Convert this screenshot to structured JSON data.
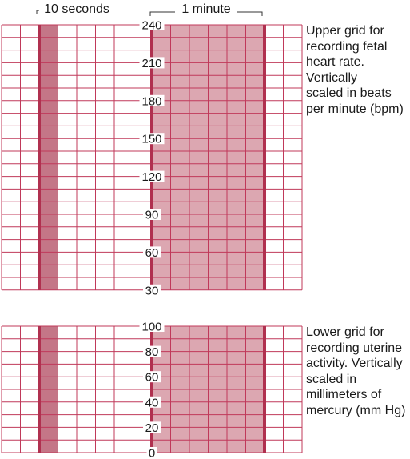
{
  "colors": {
    "grid_line": "#c0395a",
    "thick_line": "#b0304f",
    "shade_10s": "#c47687",
    "shade_1min": "#dca7b1",
    "text": "#1a1a1a",
    "bracket": "#333333"
  },
  "brackets": {
    "ten_seconds": "10 seconds",
    "one_minute": "1 minute"
  },
  "upper_grid": {
    "scale_labels": [
      "240",
      "210",
      "180",
      "150",
      "120",
      "90",
      "60",
      "30"
    ],
    "caption_lines": [
      "Upper grid for",
      "recording fetal",
      "heart rate.",
      "Vertically",
      "scaled in beats",
      "per minute (bpm)"
    ]
  },
  "lower_grid": {
    "scale_labels": [
      "100",
      "80",
      "60",
      "40",
      "20",
      "0"
    ],
    "caption_lines": [
      "Lower grid for",
      "recording uterine",
      "activity. Vertically",
      "scaled in",
      "millimeters of",
      "mercury (mm Hg)"
    ]
  }
}
